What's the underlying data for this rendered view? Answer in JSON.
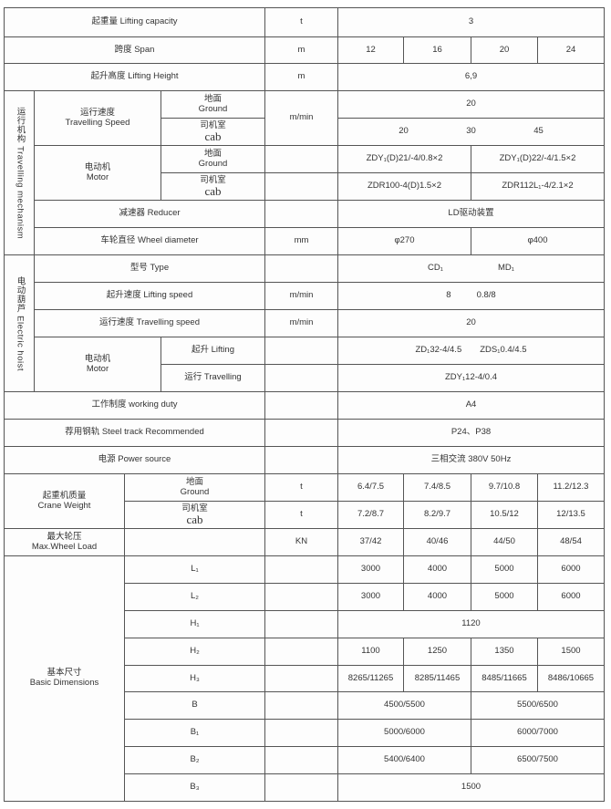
{
  "lifting_capacity": {
    "label": "起重量 Lifting capacity",
    "unit": "t",
    "value": "3"
  },
  "span": {
    "label": "跨度 Span",
    "unit": "m",
    "values": [
      "12",
      "16",
      "20",
      "24"
    ]
  },
  "lifting_height": {
    "label": "起升高度 Lifting Height",
    "unit": "m",
    "value": "6,9"
  },
  "travelling_mechanism": {
    "side_label": "运行机构 Travelling mechanism",
    "speed": {
      "label_cn": "运行速度",
      "label_en": "Travelling Speed",
      "ground_cn": "地面",
      "ground_en": "Ground",
      "cab_cn": "司机室",
      "cab_en": "cab",
      "unit": "m/min",
      "ground_value": "20",
      "cab_values": [
        "20",
        "30",
        "45"
      ]
    },
    "motor": {
      "label_cn": "电动机",
      "label_en": "Motor",
      "ground_cn": "地面",
      "ground_en": "Ground",
      "cab_cn": "司机室",
      "cab_en": "cab",
      "ground_values": [
        "ZDY₁(D)21/-4/0.8×2",
        "ZDY₁(D)22/-4/1.5×2"
      ],
      "cab_values": [
        "ZDR100-4(D)1.5×2",
        "ZDR112L₁-4/2.1×2"
      ]
    },
    "reducer": {
      "label": "减速器 Reducer",
      "value": "LD驱动装置"
    },
    "wheel": {
      "label": "车轮直径 Wheel diameter",
      "unit": "mm",
      "values": [
        "φ270",
        "φ400"
      ]
    }
  },
  "electric_hoist": {
    "side_label": "电动葫芦 Electric hoist",
    "type": {
      "label": "型号 Type",
      "values": [
        "CD₁",
        "MD₁"
      ]
    },
    "lifting_speed": {
      "label": "起升速度 Lifting speed",
      "unit": "m/min",
      "values": [
        "8",
        "0.8/8"
      ]
    },
    "travelling_speed": {
      "label": "运行速度 Travelling speed",
      "unit": "m/min",
      "value": "20"
    },
    "motor": {
      "label_cn": "电动机",
      "label_en": "Motor",
      "lifting_label": "起升 Lifting",
      "lifting_values": [
        "ZD₁32-4/4.5",
        "ZDS₁0.4/4.5"
      ],
      "travelling_label": "运行 Travelling",
      "travelling_value": "ZDY₁12-4/0.4"
    }
  },
  "working_duty": {
    "label": "工作制度 working duty",
    "value": "A4"
  },
  "steel_track": {
    "label": "荐用钢轨 Steel track Recommended",
    "value": "P24、P38"
  },
  "power_source": {
    "label": "电源 Power source",
    "value": "三相交流  380V  50Hz"
  },
  "crane_weight": {
    "label_cn": "起重机质量",
    "label_en": "Crane Weight",
    "ground_cn": "地面",
    "ground_en": "Ground",
    "cab_cn": "司机室",
    "cab_en": "cab",
    "unit": "t",
    "ground_values": [
      "6.4/7.5",
      "7.4/8.5",
      "9.7/10.8",
      "11.2/12.3"
    ],
    "cab_values": [
      "7.2/8.7",
      "8.2/9.7",
      "10.5/12",
      "12/13.5"
    ]
  },
  "max_wheel_load": {
    "label_cn": "最大轮压",
    "label_en": "Max.Wheel Load",
    "unit": "KN",
    "values": [
      "37/42",
      "40/46",
      "44/50",
      "48/54"
    ]
  },
  "basic_dimensions": {
    "label_cn": "基本尺寸",
    "label_en": "Basic  Dimensions",
    "L1": {
      "label": "L₁",
      "values": [
        "3000",
        "4000",
        "5000",
        "6000"
      ]
    },
    "L2": {
      "label": "L₂",
      "values": [
        "3000",
        "4000",
        "5000",
        "6000"
      ]
    },
    "H1": {
      "label": "H₁",
      "value": "1120"
    },
    "H2": {
      "label": "H₂",
      "values": [
        "1100",
        "1250",
        "1350",
        "1500"
      ]
    },
    "H3": {
      "label": "H₃",
      "values": [
        "8265/11265",
        "8285/11465",
        "8485/11665",
        "8486/10665"
      ]
    },
    "B": {
      "label": "B",
      "values": [
        "4500/5500",
        "5500/6500"
      ]
    },
    "B1": {
      "label": "B₁",
      "values": [
        "5000/6000",
        "6000/7000"
      ]
    },
    "B2": {
      "label": "B₂",
      "values": [
        "5400/6400",
        "6500/7500"
      ]
    },
    "B3": {
      "label": "B₃",
      "value": "1500"
    }
  }
}
